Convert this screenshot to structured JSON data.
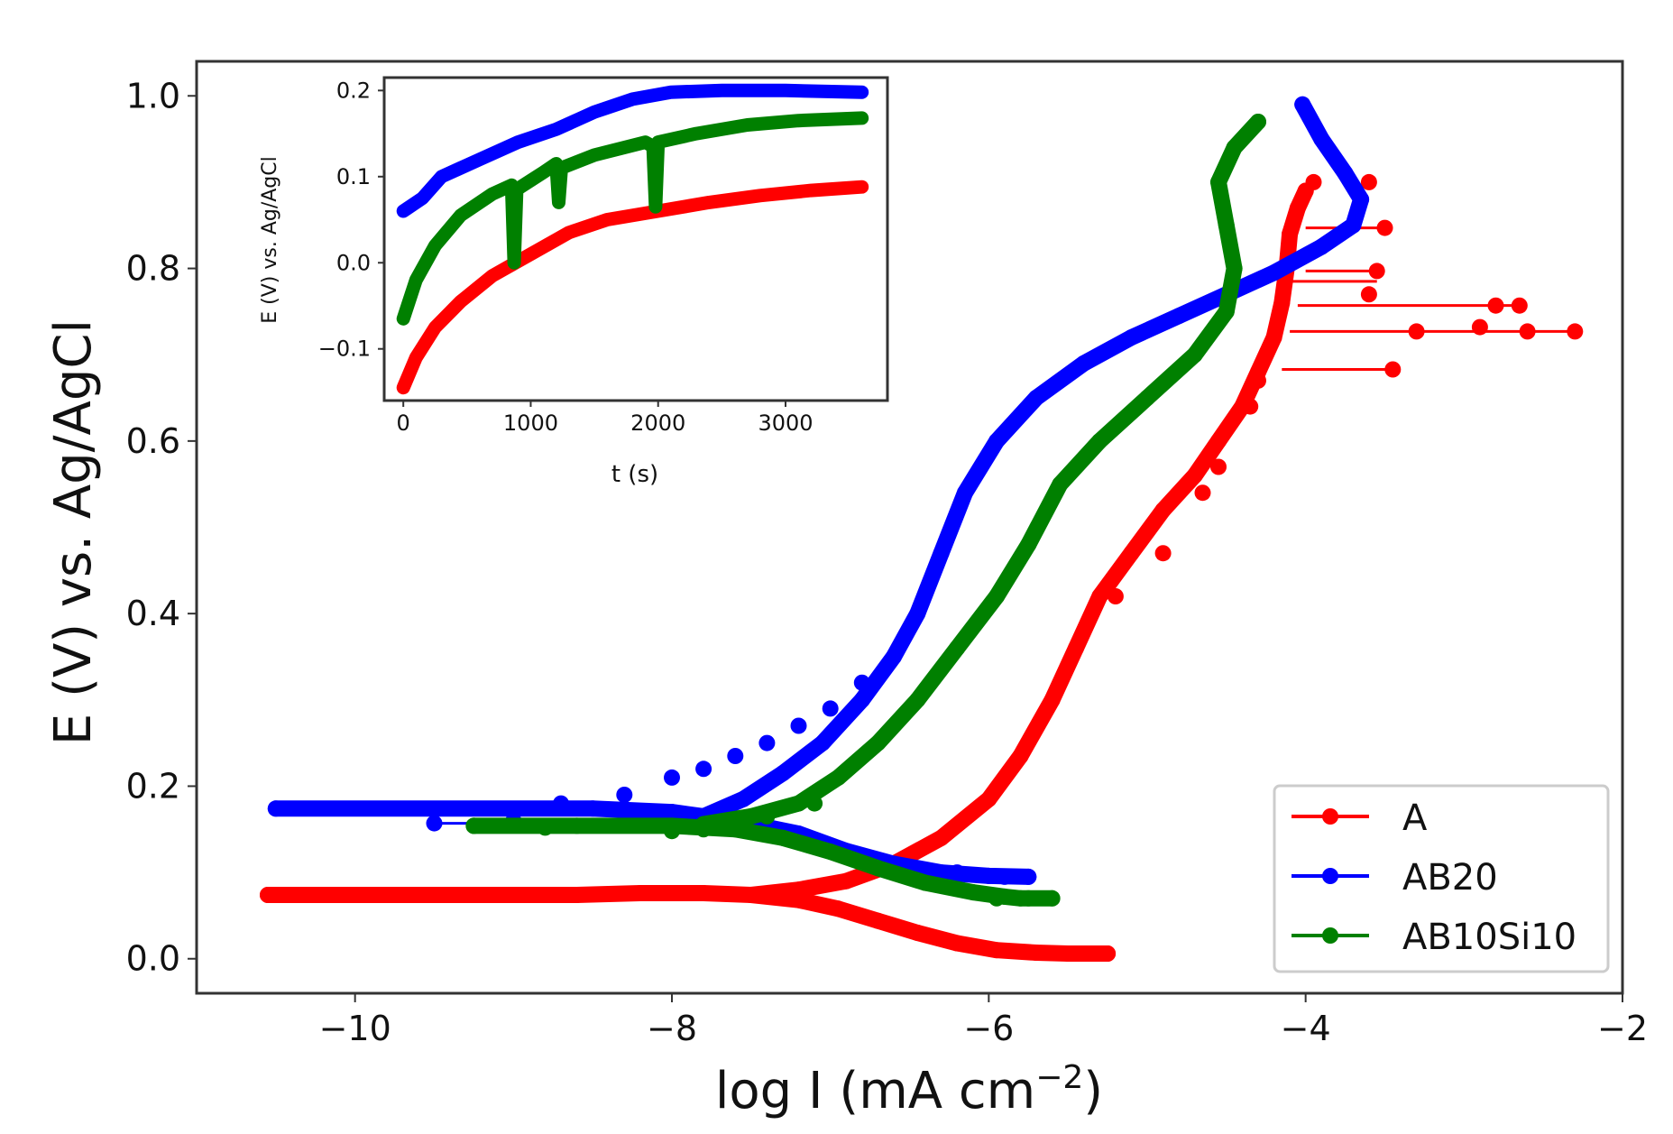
{
  "chart_data": [
    {
      "type": "line",
      "name": "polarization",
      "title": "",
      "xlabel": "log I (mA cm",
      "xlabel_sup": "−2",
      "xlabel_close": ")",
      "ylabel": "E (V) vs. Ag/AgCl",
      "xlim": [
        -11,
        -2
      ],
      "ylim": [
        -0.04,
        1.04
      ],
      "xticks": [
        -10,
        -8,
        -6,
        -4,
        -2
      ],
      "xtick_labels": [
        "−10",
        "−8",
        "−6",
        "−4",
        "−2"
      ],
      "yticks": [
        0.0,
        0.2,
        0.4,
        0.6,
        0.8,
        1.0
      ],
      "ytick_labels": [
        "0.0",
        "0.2",
        "0.4",
        "0.6",
        "0.8",
        "1.0"
      ],
      "legend": {
        "position": "lower-right",
        "entries": [
          "A",
          "AB20",
          "AB10Si10"
        ]
      },
      "series": [
        {
          "name": "A",
          "color": "#ff0000",
          "cathodic": [
            [
              -10.55,
              0.074
            ],
            [
              -8.6,
              0.074
            ],
            [
              -8.2,
              0.076
            ],
            [
              -7.8,
              0.076
            ],
            [
              -7.5,
              0.074
            ],
            [
              -7.2,
              0.068
            ],
            [
              -6.95,
              0.058
            ],
            [
              -6.7,
              0.044
            ],
            [
              -6.45,
              0.03
            ],
            [
              -6.2,
              0.018
            ],
            [
              -5.95,
              0.01
            ],
            [
              -5.7,
              0.007
            ],
            [
              -5.5,
              0.006
            ],
            [
              -5.25,
              0.006
            ]
          ],
          "anodic": [
            [
              -7.5,
              0.074
            ],
            [
              -7.2,
              0.08
            ],
            [
              -6.9,
              0.09
            ],
            [
              -6.6,
              0.11
            ],
            [
              -6.3,
              0.14
            ],
            [
              -6.0,
              0.185
            ],
            [
              -5.8,
              0.235
            ],
            [
              -5.6,
              0.3
            ],
            [
              -5.45,
              0.36
            ],
            [
              -5.3,
              0.42
            ],
            [
              -5.1,
              0.47
            ],
            [
              -4.9,
              0.52
            ],
            [
              -4.7,
              0.56
            ],
            [
              -4.55,
              0.6
            ],
            [
              -4.4,
              0.64
            ],
            [
              -4.3,
              0.68
            ],
            [
              -4.2,
              0.72
            ],
            [
              -4.15,
              0.76
            ],
            [
              -4.12,
              0.8
            ],
            [
              -4.1,
              0.84
            ],
            [
              -4.05,
              0.87
            ],
            [
              -4.0,
              0.89
            ]
          ],
          "scatter": [
            [
              -5.2,
              0.42
            ],
            [
              -4.9,
              0.47
            ],
            [
              -4.65,
              0.54
            ],
            [
              -4.55,
              0.57
            ],
            [
              -4.35,
              0.64
            ],
            [
              -4.3,
              0.67
            ],
            [
              -3.45,
              0.683
            ],
            [
              -2.3,
              0.727
            ],
            [
              -2.6,
              0.727
            ],
            [
              -3.3,
              0.727
            ],
            [
              -2.9,
              0.732
            ],
            [
              -2.65,
              0.757
            ],
            [
              -2.8,
              0.757
            ],
            [
              -3.6,
              0.77
            ],
            [
              -3.55,
              0.797
            ],
            [
              -3.5,
              0.847
            ],
            [
              -3.6,
              0.9
            ],
            [
              -3.95,
              0.9
            ]
          ],
          "spikes": [
            [
              -4.15,
              0.683,
              -3.45
            ],
            [
              -4.1,
              0.727,
              -2.3
            ],
            [
              -4.05,
              0.757,
              -2.65
            ],
            [
              -4.1,
              0.785,
              -3.55
            ],
            [
              -4.0,
              0.797,
              -3.5
            ],
            [
              -4.0,
              0.847,
              -3.5
            ]
          ]
        },
        {
          "name": "AB20",
          "color": "#0000ff",
          "cathodic": [
            [
              -10.5,
              0.174
            ],
            [
              -8.5,
              0.174
            ],
            [
              -8.0,
              0.17
            ],
            [
              -7.6,
              0.16
            ],
            [
              -7.2,
              0.145
            ],
            [
              -6.9,
              0.125
            ],
            [
              -6.6,
              0.11
            ],
            [
              -6.3,
              0.1
            ],
            [
              -6.0,
              0.096
            ],
            [
              -5.75,
              0.095
            ]
          ],
          "anodic": [
            [
              -7.8,
              0.165
            ],
            [
              -7.55,
              0.185
            ],
            [
              -7.3,
              0.215
            ],
            [
              -7.05,
              0.25
            ],
            [
              -6.8,
              0.3
            ],
            [
              -6.6,
              0.35
            ],
            [
              -6.45,
              0.4
            ],
            [
              -6.3,
              0.47
            ],
            [
              -6.15,
              0.54
            ],
            [
              -5.95,
              0.6
            ],
            [
              -5.7,
              0.65
            ],
            [
              -5.4,
              0.69
            ],
            [
              -5.1,
              0.72
            ],
            [
              -4.8,
              0.745
            ],
            [
              -4.5,
              0.77
            ],
            [
              -4.2,
              0.795
            ],
            [
              -3.9,
              0.825
            ],
            [
              -3.7,
              0.85
            ],
            [
              -3.65,
              0.88
            ],
            [
              -3.75,
              0.91
            ],
            [
              -3.9,
              0.95
            ],
            [
              -4.02,
              0.99
            ]
          ],
          "scatter": [
            [
              -9.5,
              0.157
            ],
            [
              -9.0,
              0.16
            ],
            [
              -8.7,
              0.18
            ],
            [
              -8.3,
              0.19
            ],
            [
              -8.0,
              0.21
            ],
            [
              -7.8,
              0.22
            ],
            [
              -7.6,
              0.235
            ],
            [
              -7.4,
              0.25
            ],
            [
              -7.2,
              0.27
            ],
            [
              -7.0,
              0.29
            ],
            [
              -6.8,
              0.32
            ],
            [
              -5.9,
              0.095
            ],
            [
              -6.2,
              0.1
            ],
            [
              -6.6,
              0.11
            ]
          ],
          "spikes": [
            [
              -8.2,
              0.157,
              -9.5
            ]
          ]
        },
        {
          "name": "AB10Si10",
          "color": "#008000",
          "cathodic": [
            [
              -9.25,
              0.154
            ],
            [
              -8.0,
              0.154
            ],
            [
              -7.6,
              0.15
            ],
            [
              -7.3,
              0.14
            ],
            [
              -7.0,
              0.124
            ],
            [
              -6.7,
              0.105
            ],
            [
              -6.4,
              0.088
            ],
            [
              -6.1,
              0.077
            ],
            [
              -5.9,
              0.072
            ],
            [
              -5.8,
              0.07
            ],
            [
              -5.6,
              0.07
            ]
          ],
          "anodic": [
            [
              -7.8,
              0.156
            ],
            [
              -7.5,
              0.165
            ],
            [
              -7.2,
              0.18
            ],
            [
              -6.95,
              0.21
            ],
            [
              -6.7,
              0.25
            ],
            [
              -6.45,
              0.3
            ],
            [
              -6.2,
              0.36
            ],
            [
              -5.95,
              0.42
            ],
            [
              -5.75,
              0.48
            ],
            [
              -5.55,
              0.55
            ],
            [
              -5.3,
              0.6
            ],
            [
              -5.0,
              0.65
            ],
            [
              -4.7,
              0.7
            ],
            [
              -4.5,
              0.75
            ],
            [
              -4.45,
              0.8
            ],
            [
              -4.5,
              0.85
            ],
            [
              -4.55,
              0.9
            ],
            [
              -4.45,
              0.94
            ],
            [
              -4.3,
              0.97
            ]
          ],
          "scatter": [
            [
              -9.25,
              0.154
            ],
            [
              -8.8,
              0.152
            ],
            [
              -8.6,
              0.154
            ],
            [
              -8.0,
              0.148
            ],
            [
              -7.8,
              0.15
            ],
            [
              -7.4,
              0.165
            ],
            [
              -7.1,
              0.18
            ],
            [
              -5.75,
              0.07
            ],
            [
              -5.95,
              0.07
            ]
          ],
          "spikes": []
        }
      ]
    },
    {
      "type": "line",
      "name": "inset-ocp",
      "title": "",
      "xlabel": "t (s)",
      "ylabel": "E (V) vs. Ag/AgCl",
      "xlim": [
        -150,
        3800
      ],
      "ylim": [
        -0.16,
        0.215
      ],
      "xticks": [
        0,
        1000,
        2000,
        3000
      ],
      "xtick_labels": [
        "0",
        "1000",
        "2000",
        "3000"
      ],
      "yticks": [
        -0.1,
        0.0,
        0.1,
        0.2
      ],
      "ytick_labels": [
        "−0.1",
        "0.0",
        "0.1",
        "0.2"
      ],
      "series": [
        {
          "name": "A",
          "color": "#ff0000",
          "points": [
            [
              0,
              -0.145
            ],
            [
              100,
              -0.11
            ],
            [
              250,
              -0.075
            ],
            [
              450,
              -0.045
            ],
            [
              700,
              -0.015
            ],
            [
              1000,
              0.01
            ],
            [
              1300,
              0.035
            ],
            [
              1600,
              0.05
            ],
            [
              2000,
              0.06
            ],
            [
              2400,
              0.07
            ],
            [
              2800,
              0.078
            ],
            [
              3200,
              0.084
            ],
            [
              3600,
              0.088
            ]
          ]
        },
        {
          "name": "AB20",
          "color": "#0000ff",
          "points": [
            [
              0,
              0.06
            ],
            [
              150,
              0.075
            ],
            [
              300,
              0.1
            ],
            [
              600,
              0.12
            ],
            [
              900,
              0.14
            ],
            [
              1200,
              0.155
            ],
            [
              1500,
              0.175
            ],
            [
              1800,
              0.19
            ],
            [
              2100,
              0.198
            ],
            [
              2500,
              0.2
            ],
            [
              3000,
              0.2
            ],
            [
              3600,
              0.198
            ]
          ]
        },
        {
          "name": "AB10Si10",
          "color": "#008000",
          "points": [
            [
              0,
              -0.065
            ],
            [
              100,
              -0.02
            ],
            [
              250,
              0.02
            ],
            [
              450,
              0.055
            ],
            [
              700,
              0.08
            ],
            [
              850,
              0.09
            ],
            [
              870,
              0.0
            ],
            [
              890,
              0.085
            ],
            [
              1100,
              0.105
            ],
            [
              1200,
              0.115
            ],
            [
              1220,
              0.07
            ],
            [
              1240,
              0.11
            ],
            [
              1500,
              0.125
            ],
            [
              1900,
              0.14
            ],
            [
              1960,
              0.135
            ],
            [
              1980,
              0.065
            ],
            [
              2000,
              0.14
            ],
            [
              2300,
              0.15
            ],
            [
              2700,
              0.16
            ],
            [
              3100,
              0.165
            ],
            [
              3600,
              0.168
            ]
          ]
        }
      ]
    }
  ]
}
